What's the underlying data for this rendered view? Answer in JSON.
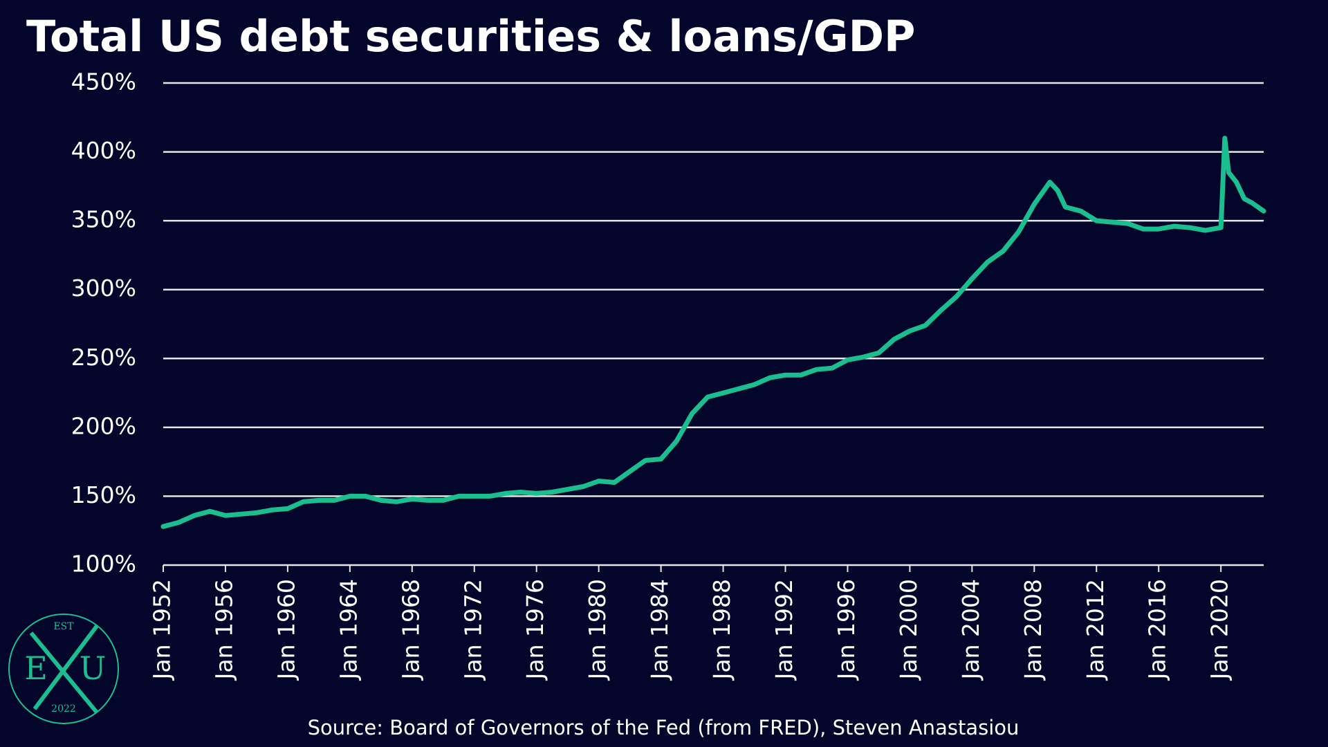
{
  "chart_data": {
    "type": "line",
    "title": "Total US debt securities & loans/GDP",
    "source": "Source: Board of Governors of the Fed (from FRED), Steven Anastasiou",
    "x": [
      1952,
      1953,
      1954,
      1955,
      1956,
      1957,
      1958,
      1959,
      1960,
      1961,
      1962,
      1963,
      1964,
      1965,
      1966,
      1967,
      1968,
      1969,
      1970,
      1971,
      1972,
      1973,
      1974,
      1975,
      1976,
      1977,
      1978,
      1979,
      1980,
      1981,
      1982,
      1983,
      1984,
      1985,
      1986,
      1987,
      1988,
      1989,
      1990,
      1991,
      1992,
      1993,
      1994,
      1995,
      1996,
      1997,
      1998,
      1999,
      2000,
      2001,
      2002,
      2003,
      2004,
      2005,
      2006,
      2007,
      2008,
      2009,
      2009.5,
      2010,
      2011,
      2012,
      2013,
      2014,
      2015,
      2016,
      2017,
      2018,
      2019,
      2020,
      2020.25,
      2020.5,
      2021,
      2021.5,
      2022,
      2022.75
    ],
    "series": [
      {
        "color": "#1bbf8f",
        "values": [
          128,
          131,
          136,
          139,
          136,
          137,
          138,
          140,
          141,
          146,
          147,
          147,
          150,
          150,
          147,
          146,
          148,
          147,
          147,
          150,
          150,
          150,
          152,
          153,
          152,
          153,
          155,
          157,
          161,
          160,
          168,
          176,
          177,
          190,
          210,
          222,
          225,
          228,
          231,
          236,
          238,
          238,
          242,
          243,
          249,
          251,
          254,
          264,
          270,
          274,
          285,
          295,
          308,
          320,
          328,
          342,
          362,
          378,
          372,
          360,
          357,
          350,
          349,
          348,
          344,
          344,
          346,
          345,
          343,
          345,
          410,
          385,
          378,
          366,
          363,
          357
        ]
      }
    ],
    "xlim": [
      1952,
      2022.75
    ],
    "xticks": [
      {
        "value": 1952,
        "label": "Jan 1952"
      },
      {
        "value": 1956,
        "label": "Jan 1956"
      },
      {
        "value": 1960,
        "label": "Jan 1960"
      },
      {
        "value": 1964,
        "label": "Jan 1964"
      },
      {
        "value": 1968,
        "label": "Jan 1968"
      },
      {
        "value": 1972,
        "label": "Jan 1972"
      },
      {
        "value": 1976,
        "label": "Jan 1976"
      },
      {
        "value": 1980,
        "label": "Jan 1980"
      },
      {
        "value": 1984,
        "label": "Jan 1984"
      },
      {
        "value": 1988,
        "label": "Jan 1988"
      },
      {
        "value": 1992,
        "label": "Jan 1992"
      },
      {
        "value": 1996,
        "label": "Jan 1996"
      },
      {
        "value": 2000,
        "label": "Jan 2000"
      },
      {
        "value": 2004,
        "label": "Jan 2004"
      },
      {
        "value": 2008,
        "label": "Jan 2008"
      },
      {
        "value": 2012,
        "label": "Jan 2012"
      },
      {
        "value": 2016,
        "label": "Jan 2016"
      },
      {
        "value": 2020,
        "label": "Jan 2020"
      }
    ],
    "ylim": [
      100,
      450
    ],
    "yticks": [
      {
        "value": 100,
        "label": "100%"
      },
      {
        "value": 150,
        "label": "150%"
      },
      {
        "value": 200,
        "label": "200%"
      },
      {
        "value": 250,
        "label": "250%"
      },
      {
        "value": 300,
        "label": "300%"
      },
      {
        "value": 350,
        "label": "350%"
      },
      {
        "value": 400,
        "label": "400%"
      },
      {
        "value": 450,
        "label": "450%"
      }
    ],
    "grid": true
  },
  "logo": {
    "top": "EST",
    "left": "E",
    "right": "U",
    "bottom": "2022"
  }
}
